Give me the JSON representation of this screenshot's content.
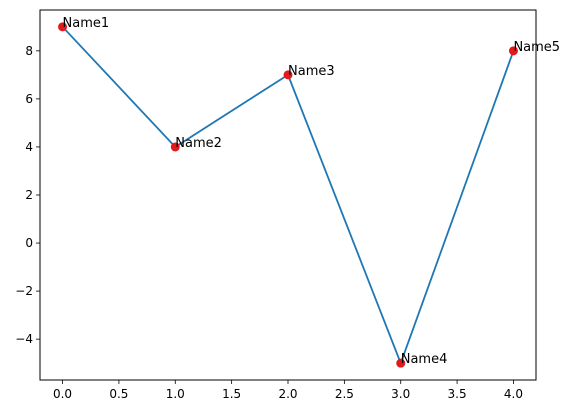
{
  "chart_data": {
    "type": "line",
    "title": "",
    "xlabel": "",
    "ylabel": "",
    "x": [
      0,
      1,
      2,
      3,
      4
    ],
    "series": [
      {
        "values": [
          9,
          4,
          7,
          -5,
          8
        ]
      }
    ],
    "point_labels": [
      "Name1",
      "Name2",
      "Name3",
      "Name4",
      "Name5"
    ],
    "xlim": [
      -0.2,
      4.2
    ],
    "ylim": [
      -5.7,
      9.7
    ],
    "x_ticks": [
      0.0,
      0.5,
      1.0,
      1.5,
      2.0,
      2.5,
      3.0,
      3.5,
      4.0
    ],
    "x_tick_labels": [
      "0.0",
      "0.5",
      "1.0",
      "1.5",
      "2.0",
      "2.5",
      "3.0",
      "3.5",
      "4.0"
    ],
    "y_ticks": [
      -4,
      -2,
      0,
      2,
      4,
      6,
      8
    ],
    "y_tick_labels": [
      "−4",
      "−2",
      "0",
      "2",
      "4",
      "6",
      "8"
    ],
    "line_color": "#1f77b4",
    "marker_color": "#e31a1c",
    "grid": false,
    "legend": "none"
  }
}
